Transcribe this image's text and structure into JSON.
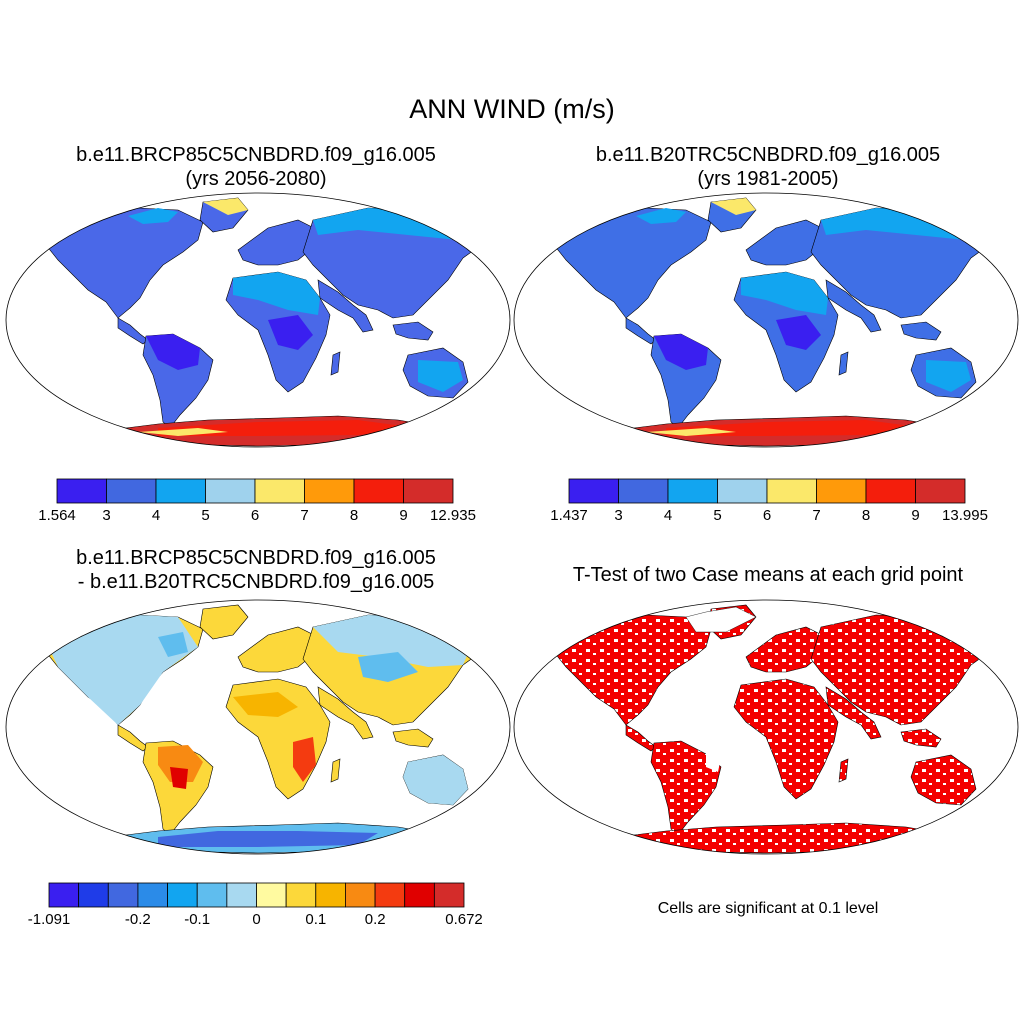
{
  "figure": {
    "main_title": "ANN WIND (m/s)",
    "panels": [
      {
        "id": "future",
        "title_line1": "b.e11.BRCP85C5CNBDRD.f09_g16.005",
        "title_line2": "(yrs 2056-2080)",
        "colorbar": {
          "colors": [
            "#3a1ff0",
            "#4168e0",
            "#12a5f0",
            "#9fd2ed",
            "#fbe86a",
            "#ff9a0a",
            "#f41e0c",
            "#d42c2a"
          ],
          "labels": [
            "1.564",
            "3",
            "4",
            "5",
            "6",
            "7",
            "8",
            "9",
            "12.935"
          ]
        }
      },
      {
        "id": "historical",
        "title_line1": "b.e11.B20TRC5CNBDRD.f09_g16.005",
        "title_line2": "(yrs 1981-2005)",
        "colorbar": {
          "colors": [
            "#3a1ff0",
            "#4168e0",
            "#12a5f0",
            "#9fd2ed",
            "#fbe86a",
            "#ff9a0a",
            "#f41e0c",
            "#d42c2a"
          ],
          "labels": [
            "1.437",
            "3",
            "4",
            "5",
            "6",
            "7",
            "8",
            "9",
            "13.995"
          ]
        }
      },
      {
        "id": "difference",
        "title_line1": "b.e11.BRCP85C5CNBDRD.f09_g16.005",
        "title_line2": "- b.e11.B20TRC5CNBDRD.f09_g16.005",
        "colorbar": {
          "colors": [
            "#3a1ff0",
            "#1f3ce8",
            "#4168e0",
            "#2b8be8",
            "#12a5f0",
            "#5fbdee",
            "#a8d9f0",
            "#fffaa0",
            "#fcd83a",
            "#f7b400",
            "#f88a12",
            "#f43b10",
            "#e00000",
            "#d42c2a"
          ],
          "labels": [
            "-1.091",
            "",
            "-0.2",
            "-0.1",
            "0",
            "0.1",
            "0.2",
            "",
            "0.672"
          ]
        }
      },
      {
        "id": "ttest",
        "title_line1": "T-Test of two Case means at each grid point",
        "note": "Cells are significant at 0.1 level"
      }
    ]
  },
  "colors": {
    "ocean": "#ffffff",
    "coast": "#000000",
    "significant": "#f40000",
    "land_future": "#4a68e8",
    "land_hist": "#3f6fe6",
    "antarctica": "#d42c2a"
  }
}
